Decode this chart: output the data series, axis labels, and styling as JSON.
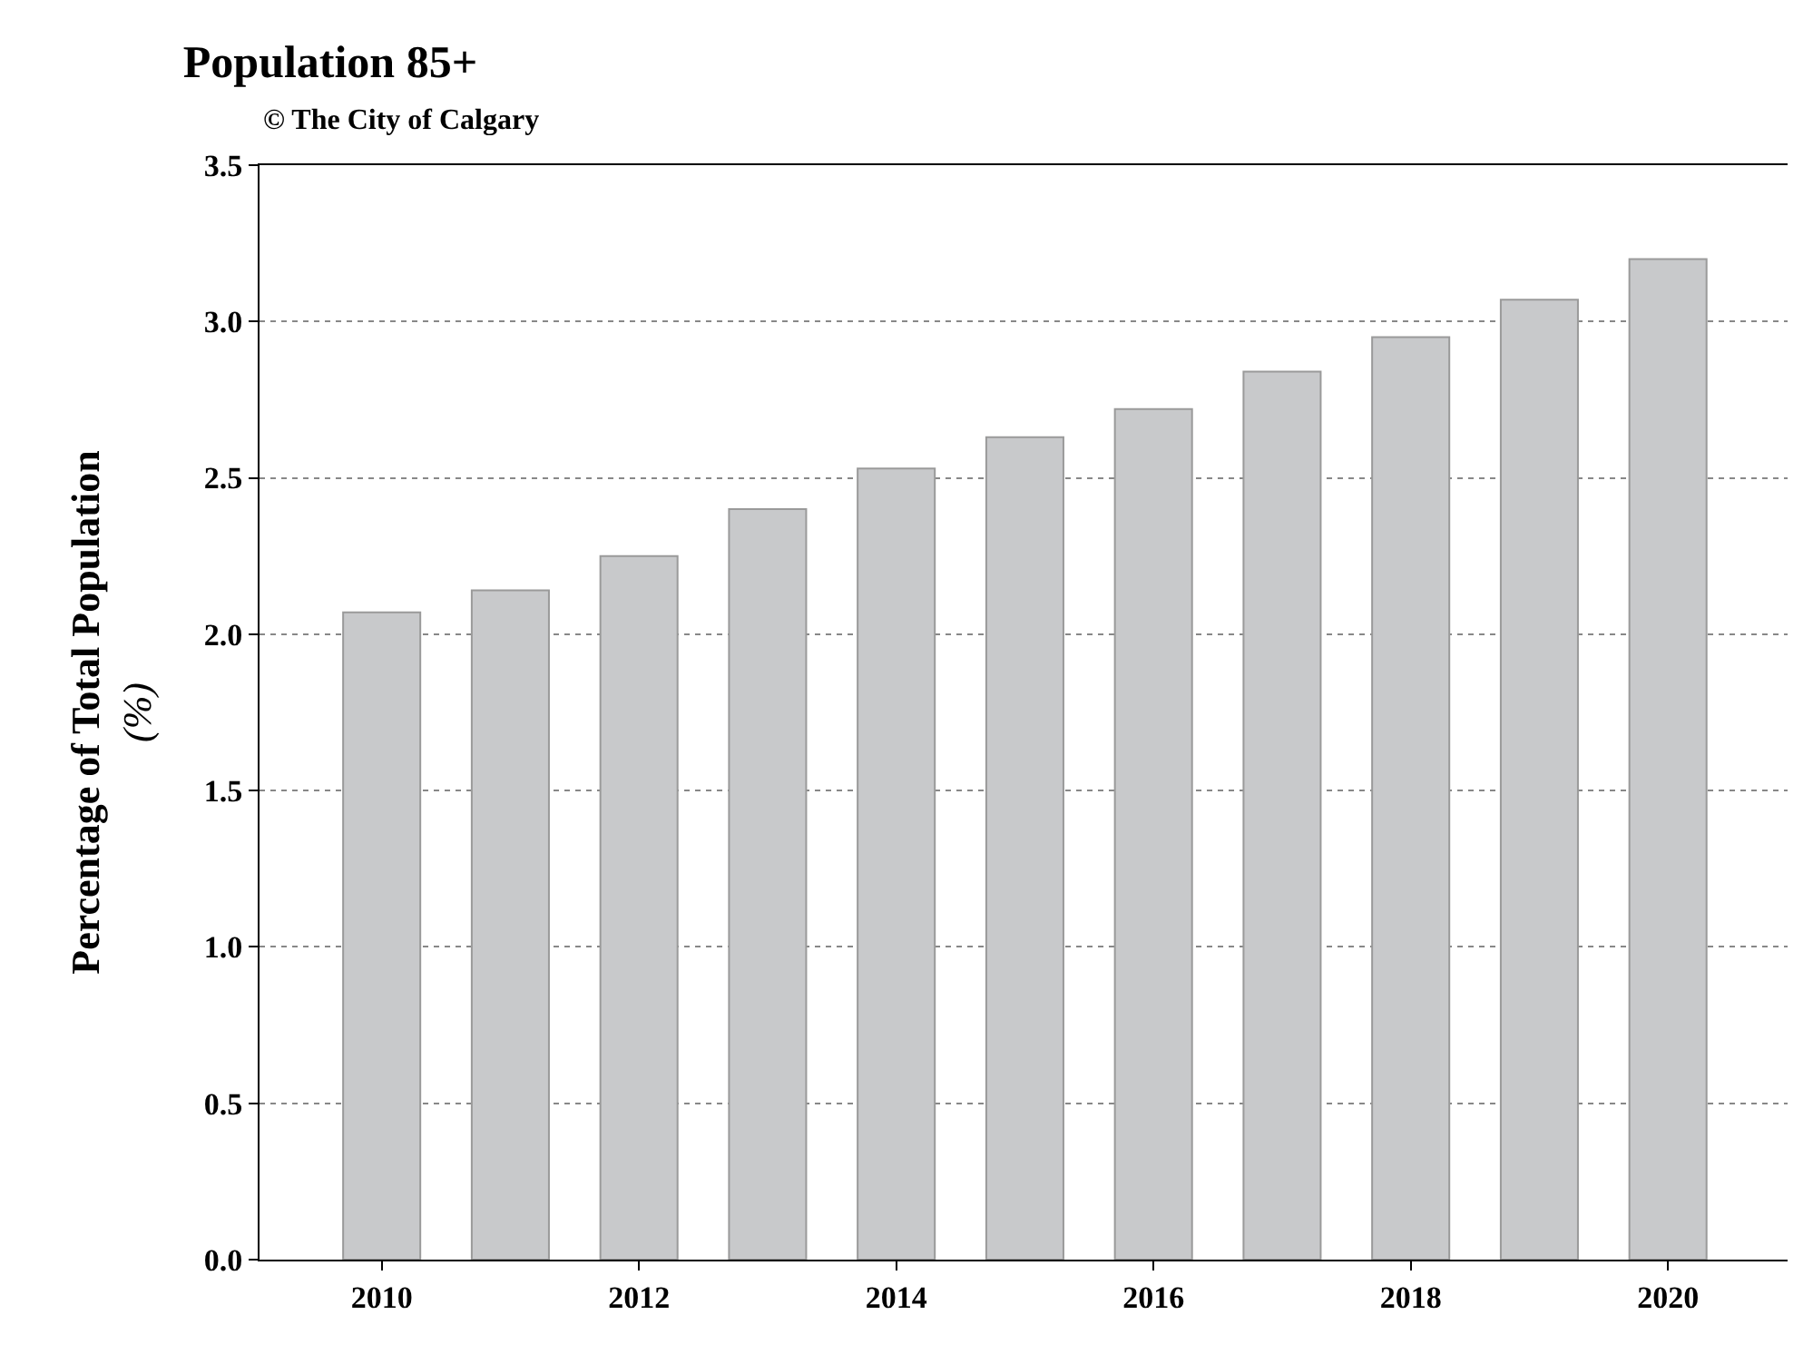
{
  "chart_data": {
    "type": "bar",
    "title": "Population 85+",
    "subtitle": "© The City of Calgary",
    "ylabel": "Percentage of Total Population\n(%)",
    "x": [
      2010,
      2011,
      2012,
      2013,
      2014,
      2015,
      2016,
      2017,
      2018,
      2019,
      2020
    ],
    "values": [
      2.07,
      2.14,
      2.25,
      2.4,
      2.53,
      2.63,
      2.72,
      2.84,
      2.95,
      3.07,
      3.2
    ],
    "color": "#c8c9cb",
    "xlim": [
      2009.05,
      2020.93
    ],
    "xticks": [
      2010,
      2012,
      2014,
      2016,
      2018,
      2020
    ],
    "ylim": [
      0,
      3.5
    ],
    "yticks": [
      {
        "value": 0,
        "label": "0.0"
      },
      {
        "value": 0.5,
        "label": "0.5"
      },
      {
        "value": 1,
        "label": "1.0"
      },
      {
        "value": 1.5,
        "label": "1.5"
      },
      {
        "value": 2,
        "label": "2.0"
      },
      {
        "value": 2.5,
        "label": "2.5"
      },
      {
        "value": 3,
        "label": "3.0"
      },
      {
        "value": 3.5,
        "label": "3.5"
      }
    ],
    "grid": "y",
    "legend": false
  }
}
